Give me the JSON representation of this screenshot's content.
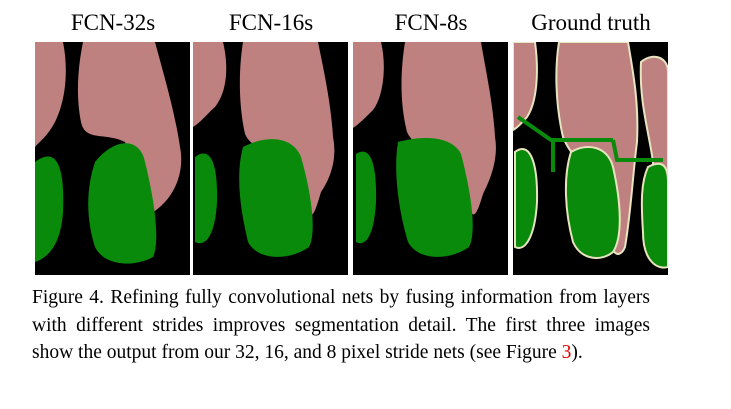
{
  "panels": [
    {
      "title": "FCN-32s"
    },
    {
      "title": "FCN-16s"
    },
    {
      "title": "FCN-8s"
    },
    {
      "title": "Ground truth"
    }
  ],
  "caption": {
    "text": "Figure 4.  Refining fully convolutional nets by fusing information from layers with different strides improves segmentation detail. The first three images show the output from our 32, 16, and 8 pixel stride nets (see Figure ",
    "ref": "3",
    "tail": ")."
  }
}
